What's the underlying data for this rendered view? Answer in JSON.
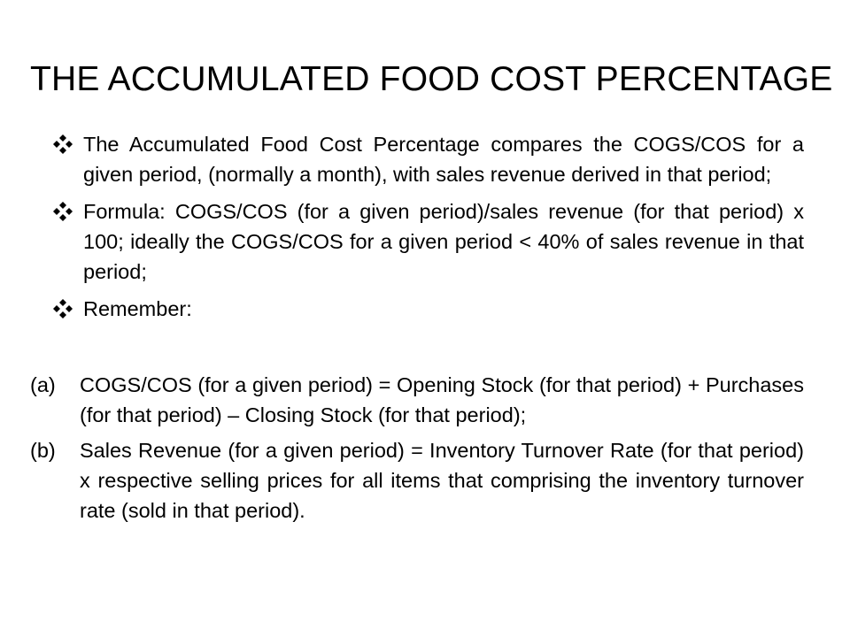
{
  "slide": {
    "title": "THE ACCUMULATED FOOD COST PERCENTAGE",
    "bullets": [
      {
        "icon": "four-diamond-bullet-icon",
        "text": "The Accumulated Food Cost Percentage compares the COGS/COS for a given period, (normally a month), with sales revenue derived in that period;"
      },
      {
        "icon": "four-diamond-bullet-icon",
        "text": "Formula: COGS/COS (for a given period)/sales revenue (for that period) x 100; ideally the COGS/COS for a given period < 40% of sales revenue in that period;"
      },
      {
        "icon": "four-diamond-bullet-icon",
        "text": "Remember:"
      }
    ],
    "numbered": [
      {
        "label": "(a)",
        "text": "COGS/COS (for a given period) = Opening Stock (for that period) + Purchases (for that period) – Closing Stock (for that period);"
      },
      {
        "label": "(b)",
        "text": "Sales Revenue (for a given period) = Inventory Turnover Rate (for that period) x respective selling prices for all items that comprising the inventory turnover rate (sold in that period)."
      }
    ]
  }
}
